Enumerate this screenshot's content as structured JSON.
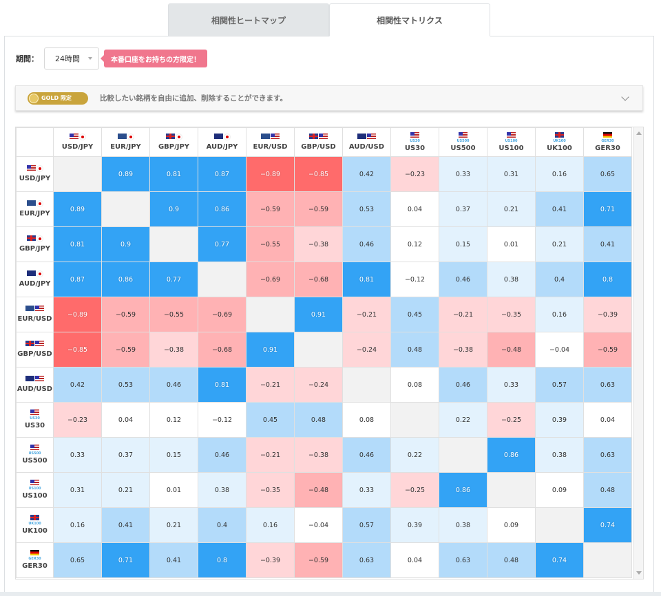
{
  "tabs": {
    "heatmap": "相関性ヒートマップ",
    "matrix": "相関性マトリクス"
  },
  "period": {
    "label": "期間：",
    "value": "24時間"
  },
  "badge": "本番口座をお持ちの方限定！",
  "gold": {
    "badge_text": "GOLD 限定",
    "message": "比較したい銘柄を自由に追加、削除することができます。"
  },
  "matrix": {
    "columns": [
      {
        "label": "USD/JPY",
        "flags": [
          "us",
          "jp"
        ],
        "sub": ""
      },
      {
        "label": "EUR/JPY",
        "flags": [
          "eu",
          "jp"
        ],
        "sub": ""
      },
      {
        "label": "GBP/JPY",
        "flags": [
          "gb",
          "jp"
        ],
        "sub": ""
      },
      {
        "label": "AUD/JPY",
        "flags": [
          "au",
          "jp"
        ],
        "sub": ""
      },
      {
        "label": "EUR/USD",
        "flags": [
          "eu",
          "us"
        ],
        "sub": ""
      },
      {
        "label": "GBP/USD",
        "flags": [
          "gb",
          "us"
        ],
        "sub": ""
      },
      {
        "label": "AUD/USD",
        "flags": [
          "au",
          "us"
        ],
        "sub": ""
      },
      {
        "label": "US30",
        "flags": [
          "us"
        ],
        "sub": "US30"
      },
      {
        "label": "US500",
        "flags": [
          "us"
        ],
        "sub": "US500"
      },
      {
        "label": "US100",
        "flags": [
          "us"
        ],
        "sub": "US100"
      },
      {
        "label": "UK100",
        "flags": [
          "gb"
        ],
        "sub": "UK100"
      },
      {
        "label": "GER30",
        "flags": [
          "de"
        ],
        "sub": "GER30"
      }
    ],
    "rows": [
      {
        "label": "USD/JPY",
        "values": [
          null,
          "0.89",
          "0.81",
          "0.87",
          "−0.89",
          "−0.85",
          "0.42",
          "−0.23",
          "0.33",
          "0.31",
          "0.16",
          "0.65"
        ]
      },
      {
        "label": "EUR/JPY",
        "values": [
          "0.89",
          null,
          "0.9",
          "0.86",
          "−0.59",
          "−0.59",
          "0.53",
          "0.04",
          "0.37",
          "0.21",
          "0.41",
          "0.71"
        ]
      },
      {
        "label": "GBP/JPY",
        "values": [
          "0.81",
          "0.9",
          null,
          "0.77",
          "−0.55",
          "−0.38",
          "0.46",
          "0.12",
          "0.15",
          "0.01",
          "0.21",
          "0.41"
        ]
      },
      {
        "label": "AUD/JPY",
        "values": [
          "0.87",
          "0.86",
          "0.77",
          null,
          "−0.69",
          "−0.68",
          "0.81",
          "−0.12",
          "0.46",
          "0.38",
          "0.4",
          "0.8"
        ]
      },
      {
        "label": "EUR/USD",
        "values": [
          "−0.89",
          "−0.59",
          "−0.55",
          "−0.69",
          null,
          "0.91",
          "−0.21",
          "0.45",
          "−0.21",
          "−0.35",
          "0.16",
          "−0.39"
        ]
      },
      {
        "label": "GBP/USD",
        "values": [
          "−0.85",
          "−0.59",
          "−0.38",
          "−0.68",
          "0.91",
          null,
          "−0.24",
          "0.48",
          "−0.38",
          "−0.48",
          "−0.04",
          "−0.59"
        ]
      },
      {
        "label": "AUD/USD",
        "values": [
          "0.42",
          "0.53",
          "0.46",
          "0.81",
          "−0.21",
          "−0.24",
          null,
          "0.08",
          "0.46",
          "0.33",
          "0.57",
          "0.63"
        ]
      },
      {
        "label": "US30",
        "values": [
          "−0.23",
          "0.04",
          "0.12",
          "−0.12",
          "0.45",
          "0.48",
          "0.08",
          null,
          "0.22",
          "−0.25",
          "0.39",
          "0.04"
        ]
      },
      {
        "label": "US500",
        "values": [
          "0.33",
          "0.37",
          "0.15",
          "0.46",
          "−0.21",
          "−0.38",
          "0.46",
          "0.22",
          null,
          "0.86",
          "0.38",
          "0.63"
        ]
      },
      {
        "label": "US100",
        "values": [
          "0.31",
          "0.21",
          "0.01",
          "0.38",
          "−0.35",
          "−0.48",
          "0.33",
          "−0.25",
          "0.86",
          null,
          "0.09",
          "0.48"
        ]
      },
      {
        "label": "UK100",
        "values": [
          "0.16",
          "0.41",
          "0.21",
          "0.4",
          "0.16",
          "−0.04",
          "0.57",
          "0.39",
          "0.38",
          "0.09",
          null,
          "0.74"
        ]
      },
      {
        "label": "GER30",
        "values": [
          "0.65",
          "0.71",
          "0.41",
          "0.8",
          "−0.39",
          "−0.59",
          "0.63",
          "0.04",
          "0.63",
          "0.48",
          "0.74",
          null
        ]
      }
    ]
  },
  "colors": {
    "strong_pos": "#33a3f5",
    "mid_pos": "#b3dbfa",
    "weak_pos": "#e3f2fd",
    "neutral": "#ffffff",
    "weak_neg": "#ffd6d8",
    "mid_neg": "#ffb2b4",
    "strong_neg": "#ff6b6b",
    "diagonal": "#f2f2f2"
  }
}
